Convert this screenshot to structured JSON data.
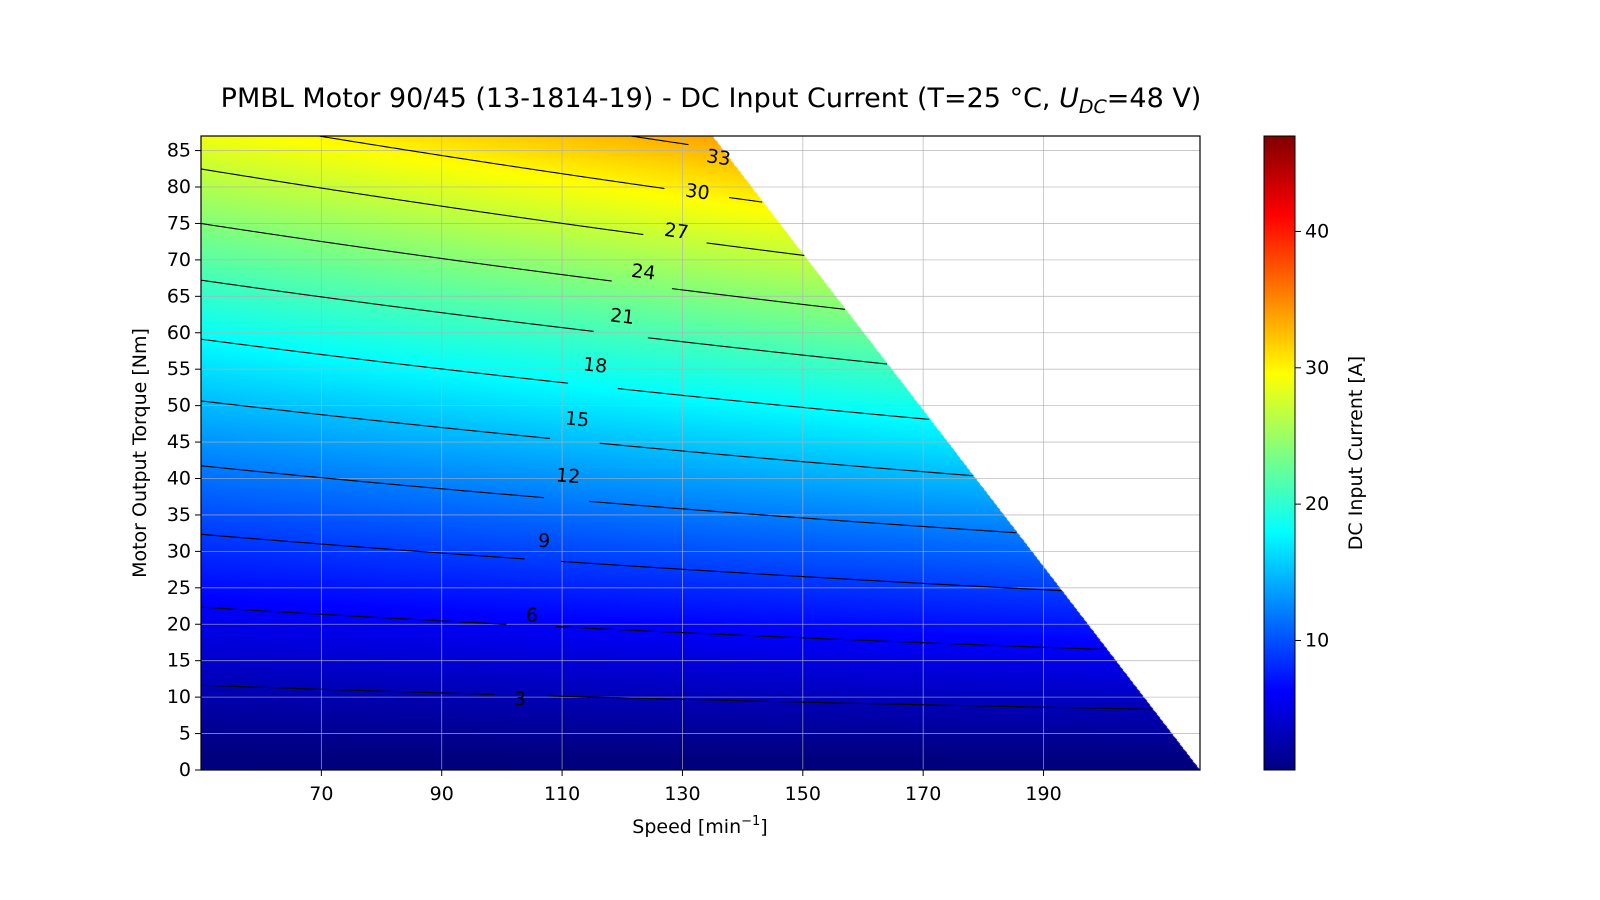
{
  "chart_data": {
    "type": "heatmap",
    "subtype": "filled-contour",
    "title_prefix": "PMBL Motor 90/45 (13-1814-19) - DC Input Current (T=25 °C, ",
    "title_var": "U",
    "title_sub": "DC",
    "title_suffix": "=48 V)",
    "xlabel_main": "Speed [min",
    "xlabel_sup": "−1",
    "xlabel_close": "]",
    "ylabel": "Motor Output Torque [Nm]",
    "colorbar_label": "DC Input Current [A]",
    "colormap": "jet",
    "colormap_stops": [
      "#00007f",
      "#0000ff",
      "#007fff",
      "#00ffff",
      "#7fff7f",
      "#ffff00",
      "#ff7f00",
      "#ff0000",
      "#7f0000"
    ],
    "color_range": [
      0.5,
      47
    ],
    "xlim": [
      50,
      216
    ],
    "ylim": [
      0,
      87
    ],
    "xticks": [
      70,
      90,
      110,
      130,
      150,
      170,
      190
    ],
    "yticks": [
      0,
      5,
      10,
      15,
      20,
      25,
      30,
      35,
      40,
      45,
      50,
      55,
      60,
      65,
      70,
      75,
      80,
      85
    ],
    "colorbar_ticks": [
      10,
      20,
      30,
      40
    ],
    "grid": true,
    "operating_boundary": [
      {
        "speed": 135,
        "torque": 87
      },
      {
        "speed": 216,
        "torque": 0
      }
    ],
    "contour_levels": [
      3,
      6,
      9,
      12,
      15,
      18,
      21,
      24,
      27,
      30,
      33
    ],
    "contour_label_positions": [
      {
        "level": 3,
        "speed": 103,
        "torque": 9.7
      },
      {
        "level": 6,
        "speed": 105,
        "torque": 21.2
      },
      {
        "level": 9,
        "speed": 107,
        "torque": 31.4
      },
      {
        "level": 12,
        "speed": 111,
        "torque": 40.3
      },
      {
        "level": 15,
        "speed": 112.5,
        "torque": 48.1
      },
      {
        "level": 18,
        "speed": 115.5,
        "torque": 55.5
      },
      {
        "level": 21,
        "speed": 120,
        "torque": 62.2
      },
      {
        "level": 24,
        "speed": 123.5,
        "torque": 68.3
      },
      {
        "level": 27,
        "speed": 129,
        "torque": 73.9
      },
      {
        "level": 30,
        "speed": 132.5,
        "torque": 79.3
      },
      {
        "level": 33,
        "speed": 136,
        "torque": 84
      }
    ]
  }
}
